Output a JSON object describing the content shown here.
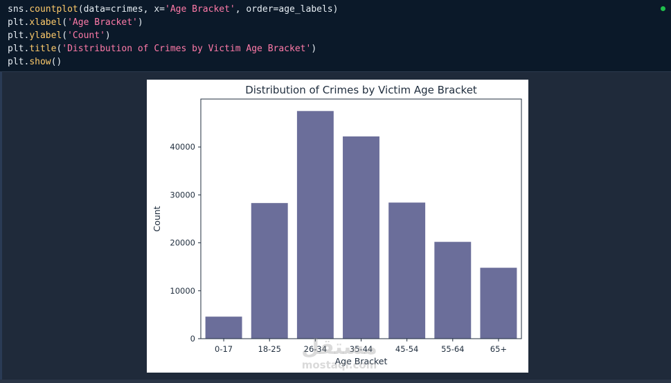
{
  "code_cell": {
    "lines": [
      [
        {
          "t": "sns.",
          "c": ""
        },
        {
          "t": "countplot",
          "c": "fn"
        },
        {
          "t": "(data=crimes, x=",
          "c": ""
        },
        {
          "t": "'Age Bracket'",
          "c": "str"
        },
        {
          "t": ", order=age_labels)",
          "c": ""
        }
      ],
      [
        {
          "t": "plt.",
          "c": ""
        },
        {
          "t": "xlabel",
          "c": "fn"
        },
        {
          "t": "(",
          "c": ""
        },
        {
          "t": "'Age Bracket'",
          "c": "str"
        },
        {
          "t": ")",
          "c": ""
        }
      ],
      [
        {
          "t": "plt.",
          "c": ""
        },
        {
          "t": "ylabel",
          "c": "fn"
        },
        {
          "t": "(",
          "c": ""
        },
        {
          "t": "'Count'",
          "c": "str"
        },
        {
          "t": ")",
          "c": ""
        }
      ],
      [
        {
          "t": "plt.",
          "c": ""
        },
        {
          "t": "title",
          "c": "fn"
        },
        {
          "t": "(",
          "c": ""
        },
        {
          "t": "'Distribution of Crimes by Victim Age Bracket'",
          "c": "str"
        },
        {
          "t": ")",
          "c": ""
        }
      ],
      [
        {
          "t": "plt.",
          "c": ""
        },
        {
          "t": "show",
          "c": "fn"
        },
        {
          "t": "()",
          "c": ""
        }
      ]
    ],
    "status_color": "#1fbf4c"
  },
  "chart_data": {
    "type": "bar",
    "title": "Distribution of Crimes by Victim Age Bracket",
    "xlabel": "Age Bracket",
    "ylabel": "Count",
    "categories": [
      "0-17",
      "18-25",
      "26-34",
      "35-44",
      "45-54",
      "55-64",
      "65+"
    ],
    "values": [
      4600,
      28300,
      47500,
      42200,
      28400,
      20200,
      14800
    ],
    "ylim": [
      0,
      50000
    ],
    "yticks": [
      0,
      10000,
      20000,
      30000,
      40000
    ],
    "bar_color": "#6b6e9a",
    "grid": false
  },
  "watermark": {
    "mark": "مستقل",
    "text": "mostaql.com"
  }
}
